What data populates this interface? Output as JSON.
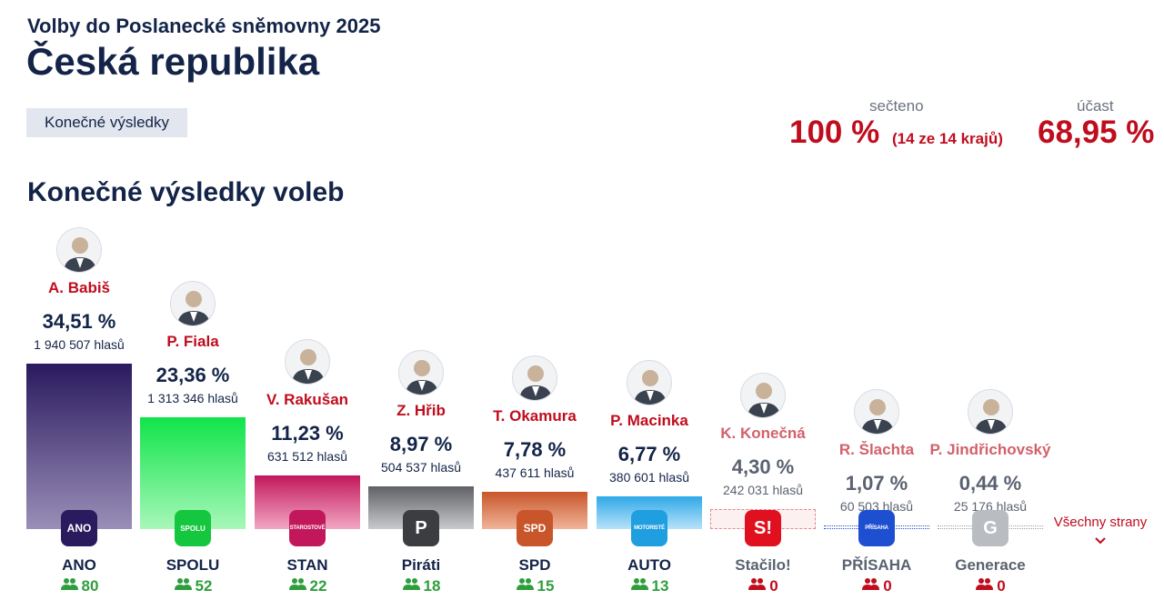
{
  "header": {
    "subtitle": "Volby do Poslanecké sněmovny 2025",
    "title": "Česká republika",
    "status": "Konečné výsledky"
  },
  "stats": {
    "counted_label": "sečteno",
    "counted_value": "100 %",
    "counted_extra": "(14 ze 14 krajů)",
    "turnout_label": "účast",
    "turnout_value": "68,95 %"
  },
  "section": {
    "heading": "Konečné výsledky voleb"
  },
  "parties": [
    {
      "candidate": "A. Babiš",
      "pct": "34,51 %",
      "votes": "1 940 507 hlasů",
      "abbr": "ANO",
      "seats": "80",
      "logo_text": "ANO",
      "value": 34.51,
      "bar_color_top": "#2a1a5e",
      "bar_color_bottom": "#9a8fb8",
      "logo_bg": "#2a1a5e",
      "elected": true
    },
    {
      "candidate": "P. Fiala",
      "pct": "23,36 %",
      "votes": "1 313 346 hlasů",
      "abbr": "SPOLU",
      "seats": "52",
      "logo_text": "SPOLU",
      "value": 23.36,
      "bar_color_top": "#10e44a",
      "bar_color_bottom": "#a8f7b9",
      "logo_bg": "#15c73e",
      "elected": true
    },
    {
      "candidate": "V. Rakušan",
      "pct": "11,23 %",
      "votes": "631 512 hlasů",
      "abbr": "STAN",
      "seats": "22",
      "logo_text": "STAROSTOVÉ",
      "value": 11.23,
      "bar_color_top": "#c2185b",
      "bar_color_bottom": "#f2a7c3",
      "logo_bg": "#c2185b",
      "elected": true
    },
    {
      "candidate": "Z. Hřib",
      "pct": "8,97 %",
      "votes": "504 537 hlasů",
      "abbr": "Piráti",
      "seats": "18",
      "logo_text": "P",
      "value": 8.97,
      "bar_color_top": "#5f6166",
      "bar_color_bottom": "#c9cacc",
      "logo_bg": "#3c3d40",
      "elected": true
    },
    {
      "candidate": "T. Okamura",
      "pct": "7,78 %",
      "votes": "437 611 hlasů",
      "abbr": "SPD",
      "seats": "15",
      "logo_text": "SPD",
      "value": 7.78,
      "bar_color_top": "#c8562a",
      "bar_color_bottom": "#f0b49a",
      "logo_bg": "#c8562a",
      "elected": true
    },
    {
      "candidate": "P. Macinka",
      "pct": "6,77 %",
      "votes": "380 601 hlasů",
      "abbr": "AUTO",
      "seats": "13",
      "logo_text": "MOTORISTÉ",
      "value": 6.77,
      "bar_color_top": "#2fa9e8",
      "bar_color_bottom": "#b7e2f8",
      "logo_bg": "#1f9ee0",
      "elected": true
    },
    {
      "candidate": "K. Konečná",
      "pct": "4,30 %",
      "votes": "242 031 hlasů",
      "abbr": "Stačilo!",
      "seats": "0",
      "logo_text": "S!",
      "value": 4.3,
      "bar_color_top": "#e08a90",
      "bar_color_bottom": "#fdf0f1",
      "logo_bg": "#e0101e",
      "elected": false
    },
    {
      "candidate": "R. Šlachta",
      "pct": "1,07 %",
      "votes": "60 503 hlasů",
      "abbr": "PŘÍSAHA",
      "seats": "0",
      "logo_text": "PŘÍSAHA",
      "value": 1.07,
      "bar_color_top": "#1f4fd1",
      "bar_color_bottom": "#1f4fd1",
      "logo_bg": "#1f4fd1",
      "elected": false
    },
    {
      "candidate": "P. Jindřichovský",
      "pct": "0,44 %",
      "votes": "25 176 hlasů",
      "abbr": "Generace",
      "seats": "0",
      "logo_text": "G",
      "value": 0.44,
      "bar_color_top": "#9aa0a8",
      "bar_color_bottom": "#9aa0a8",
      "logo_bg": "#b9bcc1",
      "elected": false
    }
  ],
  "all_parties_label": "Všechny strany"
}
